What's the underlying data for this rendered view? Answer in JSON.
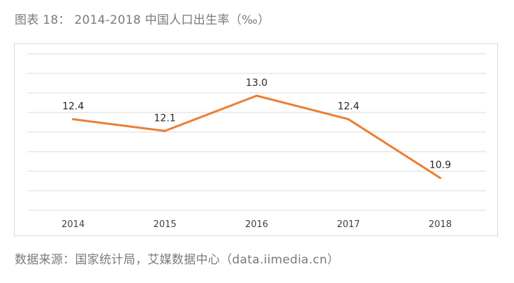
{
  "figure": {
    "caption": "图表 18：   2014-2018 中国人口出生率（‰）",
    "source": "数据来源：国家统计局，艾媒数据中心（data.iimedia.cn）"
  },
  "chart_data": {
    "type": "line",
    "title": "",
    "xlabel": "",
    "ylabel": "",
    "categories": [
      "2014",
      "2015",
      "2016",
      "2017",
      "2018"
    ],
    "series": [
      {
        "values": [
          12.4,
          12.1,
          13.0,
          12.4,
          10.9
        ],
        "color": "#ed7d31"
      }
    ],
    "data_labels": [
      "12.4",
      "12.1",
      "13.0",
      "12.4",
      "10.9"
    ],
    "grid": true,
    "gridline_color": "#d9d9d9",
    "y_axis_visible": false,
    "legend": "none"
  }
}
